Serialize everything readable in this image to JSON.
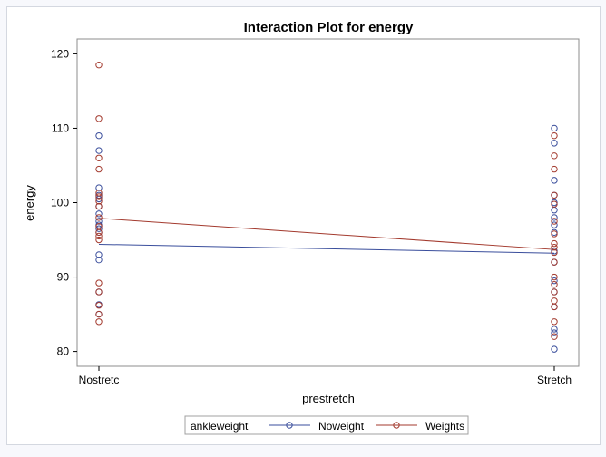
{
  "chart_data": {
    "type": "scatter",
    "title": "Interaction Plot for energy",
    "xlabel": "prestretch",
    "ylabel": "energy",
    "categories": [
      "Nostretc",
      "Stretch"
    ],
    "ylim": [
      78,
      122
    ],
    "yticks": [
      80,
      90,
      100,
      110,
      120
    ],
    "legend": {
      "title": "ankleweight",
      "placement": "bottom"
    },
    "series": [
      {
        "name": "Noweight",
        "color": "#3a4e9c",
        "means": [
          94.4,
          93.2
        ],
        "points": [
          [
            109.0,
            107.0,
            102.0,
            101.0,
            100.5,
            99.5,
            98.5,
            97.5,
            97.0,
            96.5,
            96.0,
            93.0,
            92.3,
            88.0,
            86.3,
            85.0
          ],
          [
            110.0,
            108.0,
            103.0,
            101.0,
            100.0,
            99.0,
            98.0,
            97.0,
            96.0,
            93.5,
            92.0,
            89.5,
            88.0,
            86.0,
            83.0,
            82.5,
            80.3
          ]
        ]
      },
      {
        "name": "Weights",
        "color": "#a33a2e",
        "means": [
          97.9,
          93.7
        ],
        "points": [
          [
            118.5,
            111.3,
            106.0,
            104.5,
            101.3,
            100.8,
            100.2,
            99.5,
            98.0,
            96.8,
            96.0,
            95.5,
            95.0,
            89.2,
            88.0,
            86.2,
            85.0,
            84.0
          ],
          [
            109.0,
            106.3,
            104.5,
            101.0,
            99.8,
            97.5,
            95.8,
            94.5,
            94.0,
            93.3,
            92.0,
            90.0,
            89.0,
            88.0,
            86.8,
            86.0,
            84.0,
            82.0
          ]
        ]
      }
    ]
  }
}
